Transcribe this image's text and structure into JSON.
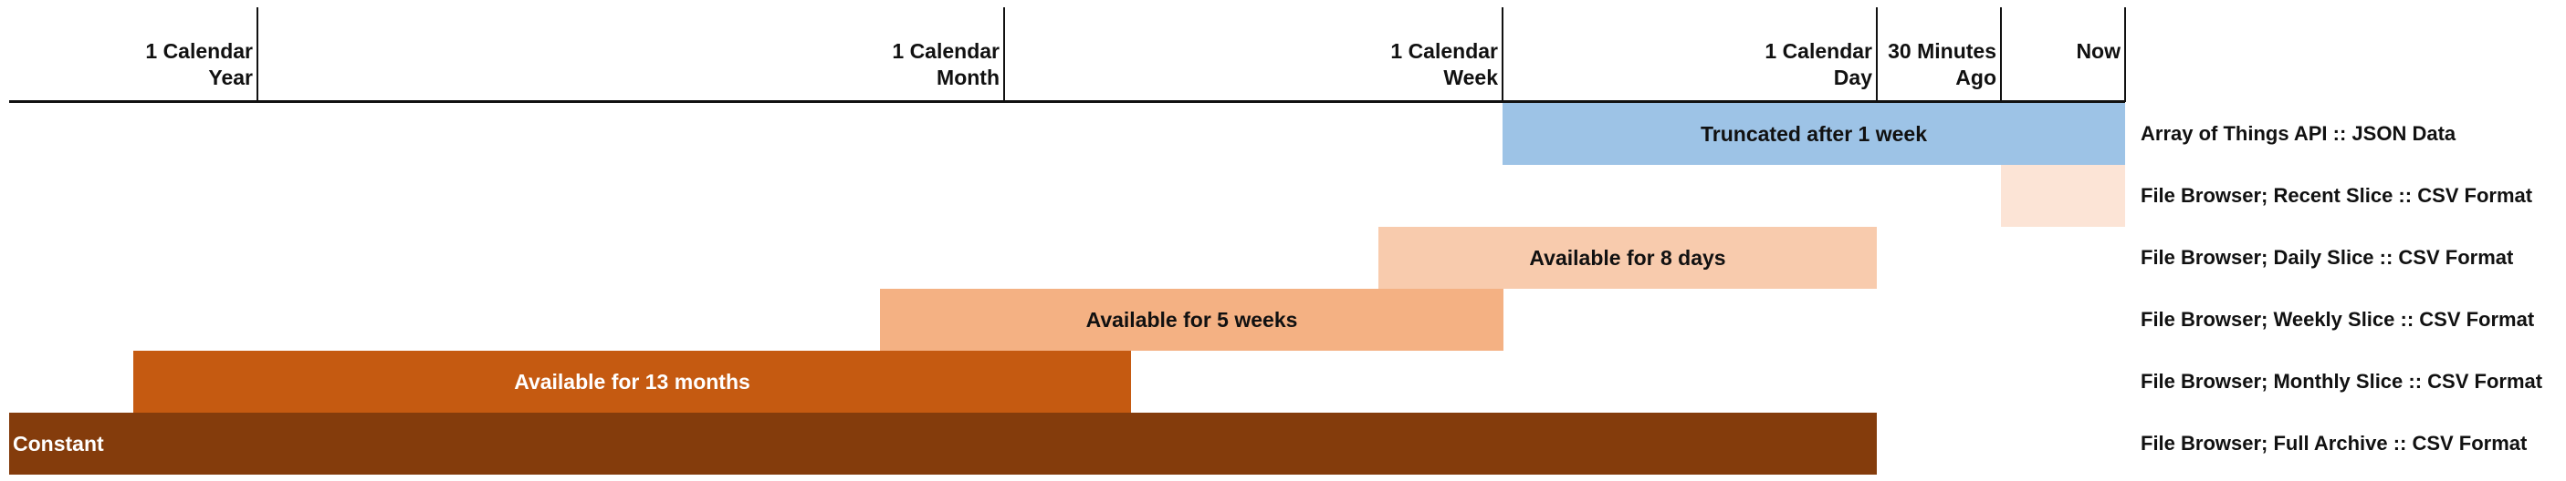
{
  "timeline": {
    "ticks": [
      {
        "label": "1 Calendar\nYear"
      },
      {
        "label": "1 Calendar\nMonth"
      },
      {
        "label": "1 Calendar\nWeek"
      },
      {
        "label": "1 Calendar\nDay"
      },
      {
        "label": "30 Minutes\nAgo"
      },
      {
        "label": "Now"
      }
    ]
  },
  "rows": [
    {
      "bar_text": "Truncated after 1 week",
      "label": "Array of Things API :: JSON Data",
      "color": "#9dc3e6",
      "text_color": "#111111"
    },
    {
      "bar_text": "",
      "label": "File Browser; Recent Slice :: CSV Format",
      "color": "#fce4d6",
      "text_color": "#111111"
    },
    {
      "bar_text": "Available for 8 days",
      "label": "File Browser; Daily Slice :: CSV Format",
      "color": "#f8cbad",
      "text_color": "#111111"
    },
    {
      "bar_text": "Available for 5 weeks",
      "label": "File Browser; Weekly Slice :: CSV Format",
      "color": "#f4b183",
      "text_color": "#111111"
    },
    {
      "bar_text": "Available for 13 months",
      "label": "File Browser; Monthly Slice :: CSV Format",
      "color": "#c55a11",
      "text_color": "#ffffff"
    },
    {
      "bar_text": "Constant",
      "label": "File Browser; Full Archive :: CSV Format",
      "color": "#843c0c",
      "text_color": "#ffffff"
    }
  ]
}
